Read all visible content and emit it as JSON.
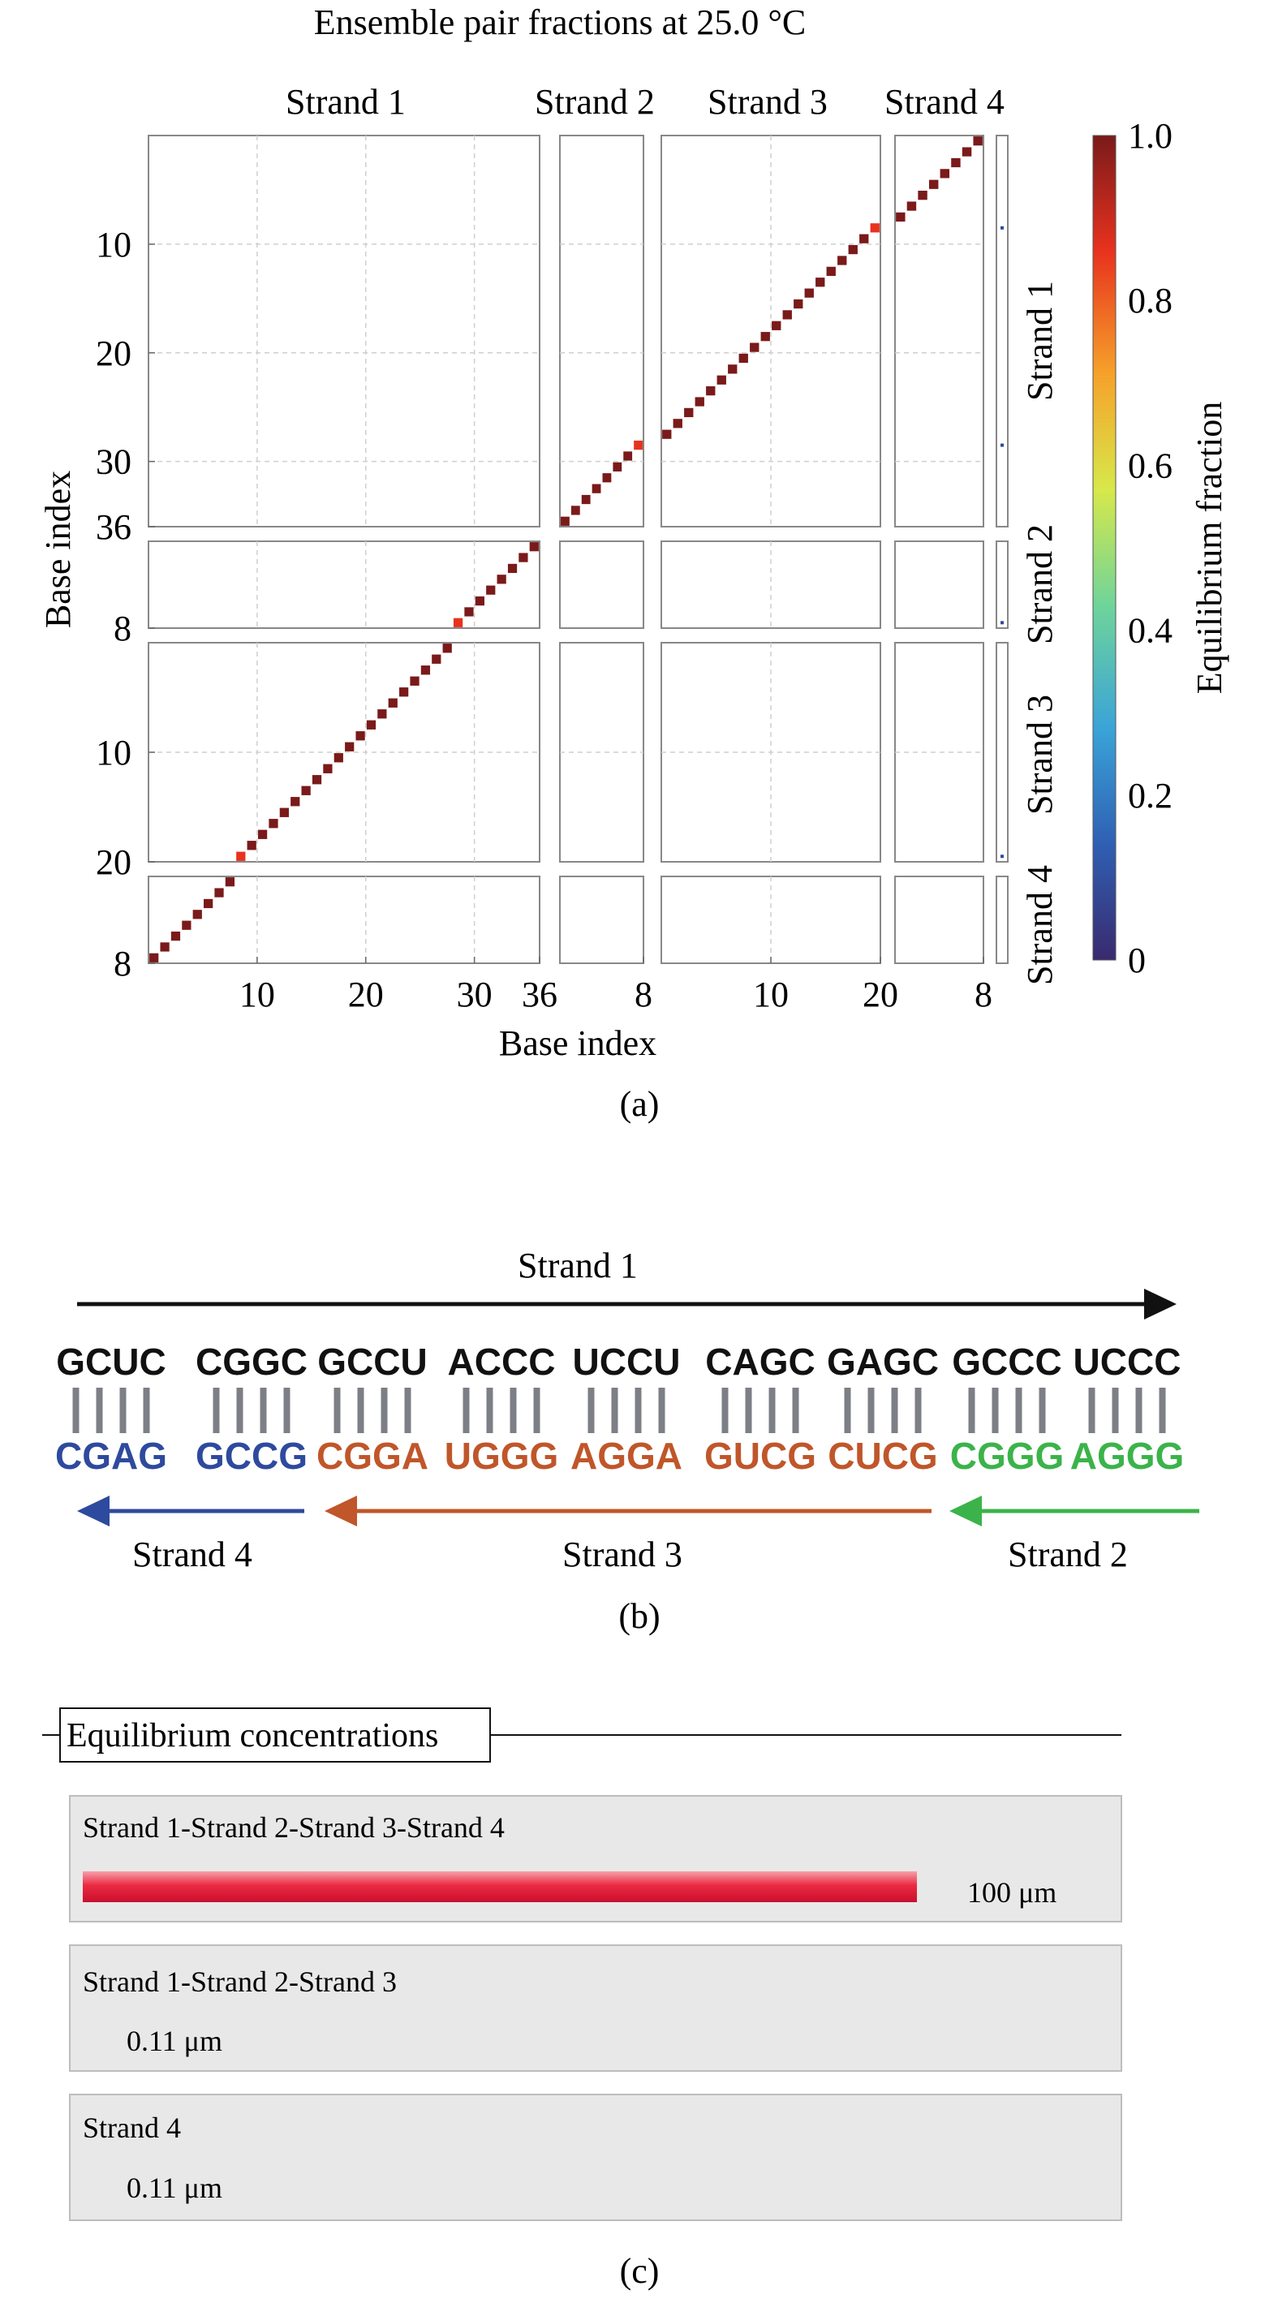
{
  "panel_a": {
    "title": "Ensemble pair fractions at 25.0 °C",
    "xlabel": "Base index",
    "ylabel": "Base index",
    "caption": "(a)",
    "strands": [
      {
        "name": "Strand 1",
        "length": 36,
        "ticks": [
          10,
          20,
          30,
          36
        ]
      },
      {
        "name": "Strand 2",
        "length": 8,
        "ticks": [
          8
        ]
      },
      {
        "name": "Strand 3",
        "length": 20,
        "ticks": [
          10,
          20
        ]
      },
      {
        "name": "Strand 4",
        "length": 8,
        "ticks": [
          8
        ]
      }
    ],
    "colorbar": {
      "label": "Equilibrium fraction",
      "ticks": [
        "0",
        "0.2",
        "0.4",
        "0.6",
        "0.8",
        "1.0"
      ],
      "colors": [
        "#3a2a6e",
        "#2f5fb3",
        "#3aa3d8",
        "#6fd49a",
        "#d7e84a",
        "#f6a22a",
        "#e8321e",
        "#7a1a1a"
      ]
    }
  },
  "chart_data": {
    "type": "heatmap",
    "title": "Ensemble pair fractions at 25.0 °C",
    "xlabel": "Base index",
    "ylabel": "Base index",
    "value_range": [
      0,
      1
    ],
    "axis_strands": [
      "Strand 1",
      "Strand 2",
      "Strand 3",
      "Strand 4"
    ],
    "strand_lengths": [
      36,
      8,
      20,
      8
    ],
    "pairs": [
      {
        "from": "Strand 1",
        "bases": [
          1,
          8
        ],
        "to": "Strand 4",
        "to_bases": [
          8,
          1
        ],
        "fraction": 1.0
      },
      {
        "from": "Strand 1",
        "bases": [
          9,
          9
        ],
        "to": "Strand 3",
        "to_bases": [
          20,
          20
        ],
        "fraction": 0.9
      },
      {
        "from": "Strand 1",
        "bases": [
          10,
          28
        ],
        "to": "Strand 3",
        "to_bases": [
          19,
          1
        ],
        "fraction": 1.0
      },
      {
        "from": "Strand 1",
        "bases": [
          29,
          29
        ],
        "to": "Strand 2",
        "to_bases": [
          8,
          8
        ],
        "fraction": 0.9
      },
      {
        "from": "Strand 1",
        "bases": [
          30,
          36
        ],
        "to": "Strand 2",
        "to_bases": [
          7,
          1
        ],
        "fraction": 1.0
      }
    ],
    "unpaired_column": [
      {
        "strand": "Strand 1",
        "base": 9,
        "fraction": 0.05
      },
      {
        "strand": "Strand 1",
        "base": 29,
        "fraction": 0.05
      },
      {
        "strand": "Strand 2",
        "base": 8,
        "fraction": 0.05
      },
      {
        "strand": "Strand 3",
        "base": 20,
        "fraction": 0.05
      }
    ]
  },
  "panel_b": {
    "caption": "(b)",
    "top_strand": {
      "name": "Strand 1",
      "color": "#111111",
      "groups": [
        "GCUC",
        "CGGC",
        "GCCU",
        "ACCC",
        "UCCU",
        "CAGC",
        "GAGC",
        "GCCC",
        "UCCC"
      ]
    },
    "bottom_groups": [
      {
        "text": "CGAG",
        "color": "#2e4a9e"
      },
      {
        "text": "GCCG",
        "color": "#2e4a9e"
      },
      {
        "text": "CGGA",
        "color": "#c0562a"
      },
      {
        "text": "UGGG",
        "color": "#c0562a"
      },
      {
        "text": "AGGA",
        "color": "#c0562a"
      },
      {
        "text": "GUCG",
        "color": "#c0562a"
      },
      {
        "text": "CUCG",
        "color": "#c0562a"
      },
      {
        "text": "CGGG",
        "color": "#3bb34a"
      },
      {
        "text": "AGGG",
        "color": "#3bb34a"
      }
    ],
    "bottom_strands": [
      {
        "name": "Strand 4",
        "color": "#2e4a9e"
      },
      {
        "name": "Strand 3",
        "color": "#c0562a"
      },
      {
        "name": "Strand 2",
        "color": "#3bb34a"
      }
    ],
    "bond_color": "#7d7f86"
  },
  "panel_c": {
    "caption": "(c)",
    "section_title": "Equilibrium concentrations",
    "rows": [
      {
        "label": "Strand 1-Strand 2-Strand 3-Strand 4",
        "value": "100 μm",
        "bar_fraction": 1.0
      },
      {
        "label": "Strand 1-Strand 2-Strand 3",
        "value": "0.11 μm",
        "bar_fraction": 0
      },
      {
        "label": "Strand 4",
        "value": "0.11 μm",
        "bar_fraction": 0
      }
    ],
    "bar_color": "#e8203a"
  }
}
